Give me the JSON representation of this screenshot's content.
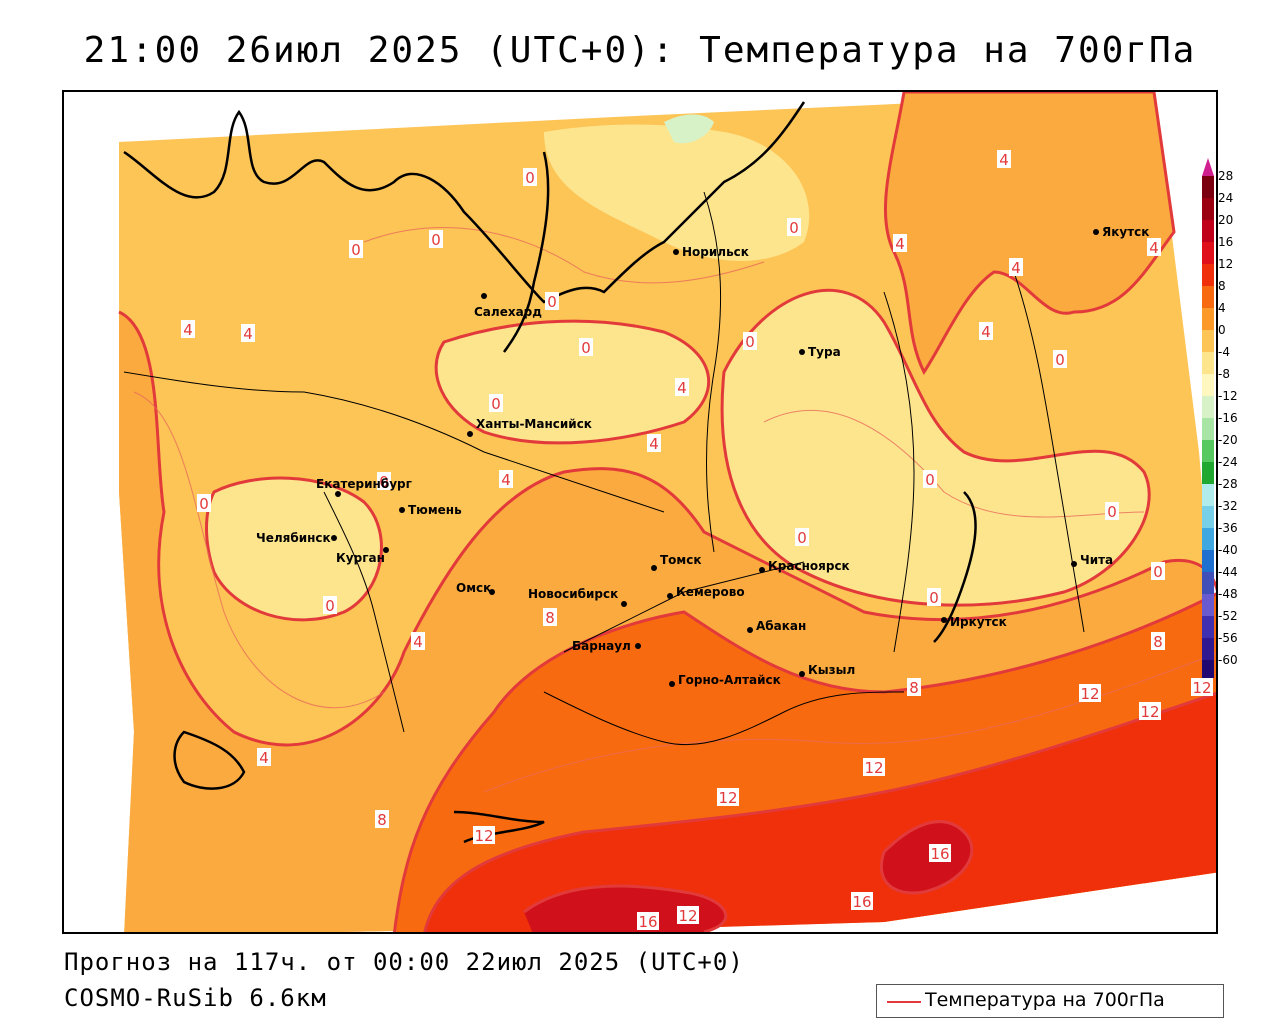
{
  "title": "21:00 26июл 2025 (UTC+0): Температура на 700гПа",
  "footer": {
    "forecast": "Прогноз на 117ч. от 00:00 22июл 2025 (UTC+0)",
    "model": "COSMO-RuSib 6.6км"
  },
  "legend": {
    "label": "Температура на 700гПа",
    "line_color": "#e23a3a"
  },
  "colorbar": {
    "ticks": [
      "28",
      "24",
      "20",
      "16",
      "12",
      "8",
      "4",
      "0",
      "-4",
      "-8",
      "-12",
      "-16",
      "-20",
      "-24",
      "-28",
      "-32",
      "-36",
      "-40",
      "-44",
      "-48",
      "-52",
      "-56",
      "-60"
    ],
    "colors": [
      "#7a0010",
      "#9a0010",
      "#c0001a",
      "#e0101a",
      "#f0300a",
      "#f86a10",
      "#fb9a28",
      "#fdc456",
      "#fde58e",
      "#fff7c0",
      "#d8f2c8",
      "#a8e4a4",
      "#58c860",
      "#20a830",
      "#b0ecec",
      "#78d0e8",
      "#40a8e0",
      "#2070d0",
      "#4050b8",
      "#6a5ad0",
      "#4030b0",
      "#301890",
      "#200870",
      "#9a30c8"
    ]
  },
  "cities": [
    {
      "name": "Норильск",
      "icon": "city-dot"
    },
    {
      "name": "Якутск",
      "icon": "city-dot"
    },
    {
      "name": "Салехард",
      "icon": "city-dot"
    },
    {
      "name": "Тура",
      "icon": "city-dot"
    },
    {
      "name": "Ханты-Мансийск",
      "icon": "city-dot"
    },
    {
      "name": "Екатеринбург",
      "icon": "city-dot"
    },
    {
      "name": "Тюмень",
      "icon": "city-dot"
    },
    {
      "name": "Челябинск",
      "icon": "city-dot"
    },
    {
      "name": "Курган",
      "icon": "city-dot"
    },
    {
      "name": "Омск",
      "icon": "city-dot"
    },
    {
      "name": "Новосибирск",
      "icon": "city-dot"
    },
    {
      "name": "Томск",
      "icon": "city-dot"
    },
    {
      "name": "Кемерово",
      "icon": "city-dot"
    },
    {
      "name": "Красноярск",
      "icon": "city-dot"
    },
    {
      "name": "Абакан",
      "icon": "city-dot"
    },
    {
      "name": "Барнаул",
      "icon": "city-dot"
    },
    {
      "name": "Горно-Алтайск",
      "icon": "city-dot"
    },
    {
      "name": "Кызыл",
      "icon": "city-dot"
    },
    {
      "name": "Иркутск",
      "icon": "city-dot"
    },
    {
      "name": "Чита",
      "icon": "city-dot"
    }
  ],
  "isotherm_labels": [
    "4",
    "4",
    "0",
    "0",
    "0",
    "0",
    "0",
    "4",
    "4",
    "4",
    "4",
    "4",
    "0",
    "0",
    "0",
    "4",
    "0",
    "4",
    "0",
    "0",
    "0",
    "0",
    "4",
    "8",
    "4",
    "8",
    "12",
    "12",
    "12",
    "12",
    "12",
    "8",
    "12",
    "16",
    "16",
    "16",
    "12",
    "8",
    "4",
    "8",
    "0",
    "0",
    "0",
    "0",
    "4"
  ]
}
